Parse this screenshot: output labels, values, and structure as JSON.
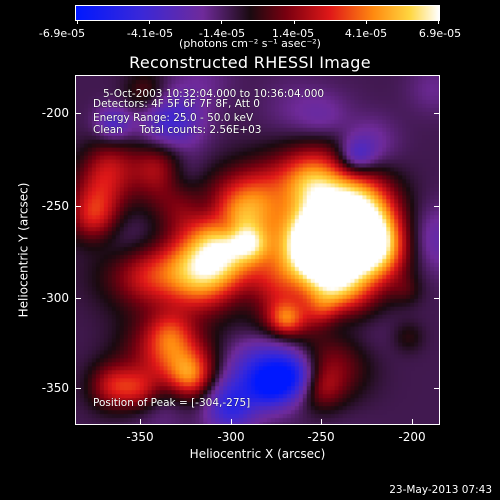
{
  "colorbar": {
    "tick_labels": [
      "-6.9e-05",
      "-4.1e-05",
      "-1.4e-05",
      "1.4e-05",
      "4.1e-05",
      "6.9e-05"
    ],
    "units": "(photons cm⁻² s⁻¹ asec⁻²)"
  },
  "title": "Reconstructed RHESSI Image",
  "info": {
    "time_range": "5-Oct-2003 10:32:04.000 to 10:36:04.000",
    "detectors": "Detectors: 4F 5F 6F 7F 8F, Att 0",
    "energy_range": "Energy Range: 25.0 - 50.0 keV",
    "clean_counts": "Clean     Total counts: 2.56E+03",
    "peak_position": "Position of Peak = [-304,-275]"
  },
  "axes": {
    "xlabel": "Heliocentric X (arcsec)",
    "ylabel": "Heliocentric Y (arcsec)",
    "xticks": [
      "-350",
      "-300",
      "-250",
      "-200"
    ],
    "yticks": [
      "-200",
      "-250",
      "-300",
      "-350"
    ]
  },
  "footer_stamp": "23-May-2013 07:43",
  "colors": {
    "background": "#000000",
    "text": "#ffffff"
  }
}
